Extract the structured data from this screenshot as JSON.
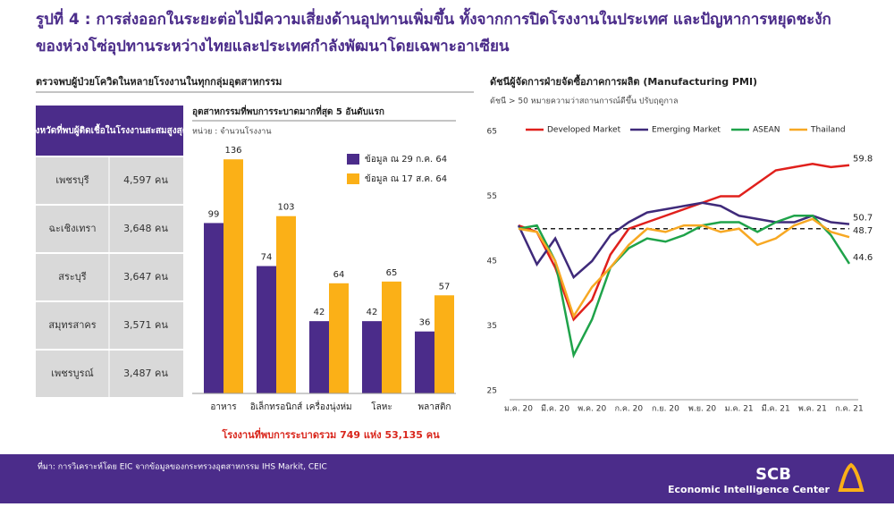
{
  "header": {
    "title_line1": "รูปที่ 4 : การส่งออกในระยะต่อไปมีความเสี่ยงด้านอุปทานเพิ่มขึ้น ทั้งจากการปิดโรงงานในประเทศ และปัญหาการหยุดชะงัก",
    "title_line2": "ของห่วงโซ่อุปทานระหว่างไทยและประเทศกำลังพัฒนาโดยเฉพาะอาเซียน"
  },
  "left": {
    "section_title": "ตรวจพบผู้ป่วยโควิดในหลายโรงงานในทุกกลุ่มอุตสาหกรรม",
    "table": {
      "header": "จังหวัดที่พบผู้ติดเชื้อในโรงงานสะสมสูงสุด",
      "rows": [
        [
          "เพชรบุรี",
          "4,597 คน"
        ],
        [
          "ฉะเชิงเทรา",
          "3,648 คน"
        ],
        [
          "สระบุรี",
          "3,647 คน"
        ],
        [
          "สมุทรสาคร",
          "3,571 คน"
        ],
        [
          "เพชรบูรณ์",
          "3,487 คน"
        ]
      ]
    },
    "summary": "โรงงานที่พบการระบาดรวม 749 แห่ง 53,135 คน"
  },
  "chart_data": [
    {
      "type": "bar",
      "title": "อุตสาหกรรมที่พบการระบาดมากที่สุด 5 อันดับแรก",
      "subtitle": "หน่วย : จำนวนโรงงาน",
      "categories": [
        "อาหาร",
        "อิเล็กทรอนิกส์",
        "เครื่องนุ่งห่ม",
        "โลหะ",
        "พลาสติก"
      ],
      "series": [
        {
          "name": "ข้อมูล ณ 29 ก.ค. 64",
          "color": "#4b2c8a",
          "values": [
            99,
            74,
            42,
            42,
            36
          ]
        },
        {
          "name": "ข้อมูล ณ 17 ส.ค. 64",
          "color": "#fbb017",
          "values": [
            136,
            103,
            64,
            65,
            57
          ]
        }
      ],
      "ylim": [
        0,
        160
      ]
    },
    {
      "type": "line",
      "title": "ดัชนีผู้จัดการฝ่ายจัดซื้อภาคการผลิต (Manufacturing PMI)",
      "subtitle": "ดัชนี > 50 หมายความว่าสถานการณ์ดีขึ้น ปรับฤดูกาล",
      "categories": [
        "ม.ค. 20",
        null,
        "มี.ค. 20",
        null,
        "พ.ค. 20",
        null,
        "ก.ค. 20",
        null,
        "ก.ย. 20",
        null,
        "พ.ย. 20",
        null,
        "ม.ค. 21",
        null,
        "มี.ค. 21",
        null,
        "พ.ค. 21",
        null,
        "ก.ค. 21"
      ],
      "series": [
        {
          "name": "Developed Market",
          "color": "#e0201c",
          "values": [
            50.5,
            49.5,
            44,
            36,
            39,
            46,
            50,
            51,
            52,
            53,
            54,
            55,
            55,
            57,
            59,
            59.5,
            60,
            59.5,
            59.8
          ],
          "value_labels": [
            null,
            null,
            null,
            null,
            null,
            null,
            null,
            null,
            null,
            null,
            null,
            null,
            null,
            null,
            null,
            null,
            null,
            null,
            "59.8"
          ]
        },
        {
          "name": "Emerging Market",
          "color": "#3f2a7a",
          "values": [
            50.5,
            44.5,
            48.5,
            42.5,
            45,
            49,
            51,
            52.5,
            53,
            53.5,
            54,
            53.5,
            52,
            51.5,
            51,
            51,
            52,
            51,
            50.7
          ],
          "value_labels": [
            null,
            null,
            null,
            null,
            null,
            null,
            null,
            null,
            null,
            null,
            null,
            null,
            null,
            null,
            null,
            null,
            null,
            null,
            "50.7"
          ]
        },
        {
          "name": "ASEAN",
          "color": "#1fa34a",
          "values": [
            50,
            50.5,
            45,
            30.5,
            36,
            44,
            47,
            48.5,
            48,
            49,
            50.5,
            51,
            51,
            49.5,
            51,
            52,
            52,
            49,
            44.6
          ],
          "value_labels": [
            null,
            null,
            null,
            null,
            null,
            null,
            null,
            null,
            null,
            null,
            null,
            null,
            null,
            null,
            null,
            null,
            null,
            null,
            "44.6"
          ]
        },
        {
          "name": "Thailand",
          "color": "#f7a823",
          "values": [
            50,
            49.5,
            45,
            36.5,
            41,
            44,
            47.5,
            50,
            49.5,
            50.5,
            50.5,
            49.5,
            50,
            47.5,
            48.5,
            50.5,
            51.5,
            49.5,
            48.7
          ],
          "value_labels": [
            null,
            null,
            null,
            null,
            null,
            null,
            null,
            null,
            null,
            null,
            null,
            null,
            null,
            null,
            null,
            null,
            null,
            null,
            "48.7"
          ]
        }
      ],
      "ylim": [
        25,
        65
      ],
      "yticks": [
        25,
        35,
        45,
        55,
        65
      ],
      "reference_line": 50
    }
  ],
  "footer": {
    "source": "ที่มา: การวิเคราะห์โดย EIC จากข้อมูลของกระทรวงอุตสาหกรรม IHS Markit, CEIC",
    "brand": "SCB",
    "brand_sub": "Economic Intelligence Center"
  }
}
